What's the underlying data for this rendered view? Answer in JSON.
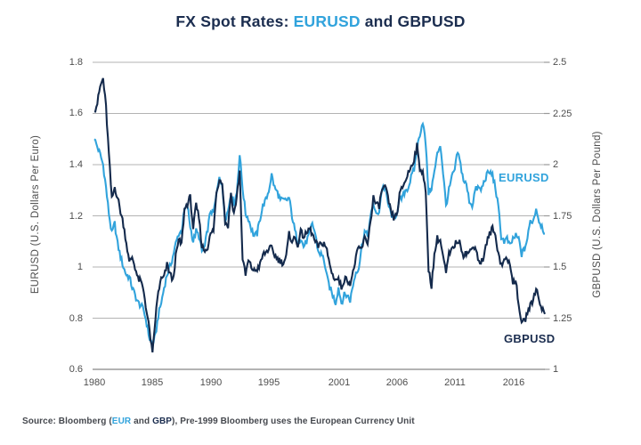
{
  "title": {
    "prefix": "FX Spot Rates:",
    "highlight": "EURUSD",
    "suffix": "and GBPUSD"
  },
  "series_labels": {
    "eurusd": "EURUSD",
    "gbpusd": "GBPUSD"
  },
  "source": {
    "prefix": "Source: Bloomberg (",
    "eur": "EUR",
    "mid": " and ",
    "gbp": "GBP",
    "suffix": "), Pre-1999 Bloomberg uses the European Currency Unit"
  },
  "colors": {
    "navy_text": "#1B2D4F",
    "navy_line": "#142A4C",
    "blue": "#31A3DC",
    "grid": "#B3B3B3",
    "axis_line": "#9A9A9A",
    "tick_text": "#4D4D4D",
    "source_text": "#45484E"
  },
  "chart_data": {
    "type": "line",
    "title": "FX Spot Rates: EURUSD and GBPUSD",
    "grid": "horizontal-on",
    "legend_position": "inline-labels",
    "start_year": 1980,
    "end_year": 2018.75,
    "points_per_year": 4,
    "x_tick_years": [
      1980,
      1985,
      1990,
      1995,
      2001,
      2006,
      2011,
      2016
    ],
    "x_tick_labels": [
      "1980",
      "1985",
      "1990",
      "1995",
      "2001",
      "2006",
      "2011",
      "2016"
    ],
    "left_axis": {
      "label": "EURUSD (U.S. Dollars Per Euro)",
      "min": 0.6,
      "max": 1.8,
      "tick_values": [
        1.8,
        1.6,
        1.4,
        1.2,
        1.0,
        0.8,
        0.6
      ],
      "tick_labels": [
        "1.8",
        "1.6",
        "1.4",
        "1.2",
        "1",
        "0.8",
        "0.6"
      ]
    },
    "right_axis": {
      "label": "GBPUSD (U.S. Dollars Per Pound)",
      "min": 1.0,
      "max": 2.5,
      "tick_values": [
        2.5,
        2.25,
        2.0,
        1.75,
        1.5,
        1.25,
        1.0
      ],
      "tick_labels": [
        "2.5",
        "2.25",
        "2",
        "1.75",
        "1.5",
        "1.25",
        "1"
      ]
    },
    "series": [
      {
        "name": "EURUSD",
        "axis": "left",
        "color": "#31A3DC",
        "values": [
          1.5,
          1.47,
          1.44,
          1.4,
          1.31,
          1.21,
          1.13,
          1.17,
          1.09,
          1.04,
          1.0,
          0.97,
          0.96,
          0.92,
          0.89,
          0.86,
          0.85,
          0.83,
          0.78,
          0.72,
          0.7,
          0.73,
          0.81,
          0.86,
          0.92,
          0.97,
          1.0,
          1.04,
          1.09,
          1.13,
          1.14,
          1.22,
          1.24,
          1.16,
          1.1,
          1.14,
          1.12,
          1.06,
          1.08,
          1.15,
          1.22,
          1.21,
          1.28,
          1.36,
          1.31,
          1.19,
          1.22,
          1.29,
          1.25,
          1.29,
          1.44,
          1.31,
          1.21,
          1.19,
          1.15,
          1.12,
          1.13,
          1.19,
          1.24,
          1.26,
          1.3,
          1.36,
          1.31,
          1.29,
          1.26,
          1.26,
          1.26,
          1.27,
          1.2,
          1.14,
          1.1,
          1.11,
          1.08,
          1.1,
          1.13,
          1.17,
          1.13,
          1.06,
          1.05,
          1.03,
          0.96,
          0.92,
          0.89,
          0.86,
          0.92,
          0.86,
          0.89,
          0.89,
          0.87,
          0.93,
          0.98,
          1.0,
          1.08,
          1.14,
          1.12,
          1.19,
          1.25,
          1.2,
          1.22,
          1.31,
          1.31,
          1.25,
          1.21,
          1.19,
          1.21,
          1.26,
          1.27,
          1.3,
          1.31,
          1.35,
          1.38,
          1.46,
          1.52,
          1.57,
          1.48,
          1.29,
          1.31,
          1.37,
          1.44,
          1.48,
          1.37,
          1.24,
          1.3,
          1.35,
          1.38,
          1.45,
          1.4,
          1.34,
          1.32,
          1.26,
          1.24,
          1.3,
          1.31,
          1.3,
          1.33,
          1.36,
          1.37,
          1.36,
          1.31,
          1.23,
          1.12,
          1.1,
          1.11,
          1.08,
          1.11,
          1.12,
          1.11,
          1.05,
          1.07,
          1.11,
          1.18,
          1.18,
          1.23,
          1.18,
          1.16,
          1.13
        ]
      },
      {
        "name": "GBPUSD",
        "axis": "right",
        "color": "#142A4C",
        "values": [
          2.26,
          2.3,
          2.38,
          2.42,
          2.28,
          2.05,
          1.83,
          1.89,
          1.84,
          1.77,
          1.71,
          1.62,
          1.52,
          1.55,
          1.5,
          1.44,
          1.43,
          1.38,
          1.28,
          1.19,
          1.07,
          1.25,
          1.38,
          1.44,
          1.45,
          1.51,
          1.47,
          1.43,
          1.55,
          1.63,
          1.61,
          1.78,
          1.81,
          1.84,
          1.69,
          1.8,
          1.74,
          1.6,
          1.58,
          1.6,
          1.66,
          1.68,
          1.86,
          1.93,
          1.92,
          1.72,
          1.7,
          1.86,
          1.76,
          1.84,
          1.97,
          1.54,
          1.46,
          1.53,
          1.5,
          1.48,
          1.49,
          1.51,
          1.56,
          1.57,
          1.59,
          1.59,
          1.56,
          1.54,
          1.53,
          1.52,
          1.55,
          1.66,
          1.63,
          1.64,
          1.61,
          1.67,
          1.65,
          1.66,
          1.69,
          1.66,
          1.62,
          1.6,
          1.61,
          1.62,
          1.58,
          1.51,
          1.46,
          1.44,
          1.44,
          1.4,
          1.44,
          1.44,
          1.42,
          1.47,
          1.55,
          1.59,
          1.59,
          1.64,
          1.62,
          1.72,
          1.84,
          1.8,
          1.8,
          1.88,
          1.89,
          1.84,
          1.77,
          1.74,
          1.75,
          1.85,
          1.89,
          1.92,
          1.96,
          1.99,
          2.03,
          2.09,
          1.98,
          1.97,
          1.86,
          1.49,
          1.41,
          1.56,
          1.64,
          1.63,
          1.55,
          1.47,
          1.56,
          1.58,
          1.61,
          1.63,
          1.61,
          1.56,
          1.57,
          1.57,
          1.59,
          1.61,
          1.54,
          1.52,
          1.55,
          1.62,
          1.66,
          1.69,
          1.65,
          1.57,
          1.51,
          1.53,
          1.55,
          1.5,
          1.43,
          1.44,
          1.3,
          1.24,
          1.23,
          1.28,
          1.31,
          1.34,
          1.4,
          1.34,
          1.3,
          1.27
        ]
      }
    ]
  }
}
